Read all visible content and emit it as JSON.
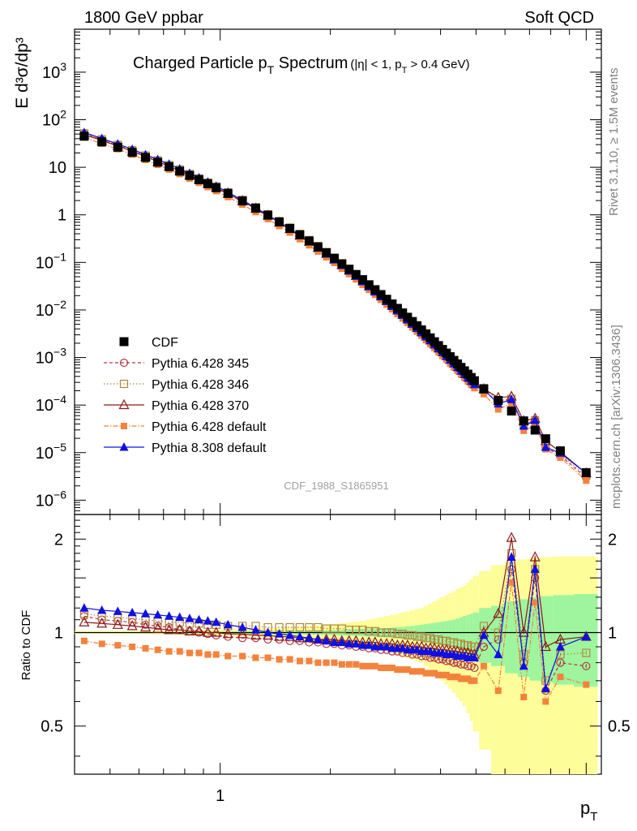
{
  "header": {
    "left": "1800 GeV ppbar",
    "right": "Soft QCD",
    "watermark": "CDF_1988_S1865951",
    "side_top": "Rivet 3.1.10, ≥ 1.5M events",
    "side_bottom": "mcplots.cern.ch [arXiv:1306.3436]"
  },
  "chart_data": [
    {
      "type": "line",
      "title": "Charged Particle p",
      "title_sub": "T",
      "title_word": " Spectrum",
      "title_cut_a": "(|η| < 1, p",
      "title_cut_sub": "T",
      "title_cut_b": " > 0.4 GeV)",
      "ylabel": "E d³σ/dp³",
      "xlabel": "p",
      "xlabel_sub": "T",
      "xscale": "log",
      "yscale": "log",
      "xlim": [
        0.4,
        11
      ],
      "ylim": [
        5e-07,
        8000
      ],
      "x_tick_labels": [
        {
          "v": 1,
          "label": "1"
        }
      ],
      "y_tick_labels": [
        {
          "v": 1000,
          "base": "10",
          "exp": "3"
        },
        {
          "v": 100,
          "base": "10",
          "exp": "2"
        },
        {
          "v": 10,
          "base": "10",
          "exp": ""
        },
        {
          "v": 1,
          "base": "1",
          "exp": ""
        },
        {
          "v": 0.1,
          "base": "10",
          "exp": "−1"
        },
        {
          "v": 0.01,
          "base": "10",
          "exp": "−2"
        },
        {
          "v": 0.001,
          "base": "10",
          "exp": "−3"
        },
        {
          "v": 0.0001,
          "base": "10",
          "exp": "−4"
        },
        {
          "v": 1e-05,
          "base": "10",
          "exp": "−5"
        },
        {
          "v": 1e-06,
          "base": "10",
          "exp": "−6"
        }
      ],
      "legend_position": "bottom-left",
      "x": [
        0.425,
        0.475,
        0.525,
        0.575,
        0.625,
        0.675,
        0.725,
        0.775,
        0.825,
        0.875,
        0.925,
        0.975,
        1.05,
        1.15,
        1.25,
        1.35,
        1.45,
        1.55,
        1.65,
        1.75,
        1.85,
        1.95,
        2.05,
        2.15,
        2.25,
        2.35,
        2.45,
        2.55,
        2.65,
        2.75,
        2.85,
        2.95,
        3.05,
        3.15,
        3.25,
        3.35,
        3.45,
        3.55,
        3.65,
        3.75,
        3.85,
        3.95,
        4.05,
        4.15,
        4.25,
        4.35,
        4.45,
        4.55,
        4.65,
        4.75,
        4.85,
        4.95,
        5.25,
        5.75,
        6.25,
        6.75,
        7.25,
        7.75,
        8.5,
        10.0
      ],
      "series": [
        {
          "name": "CDF",
          "color": "#000000",
          "marker": "square-filled",
          "values": [
            45.0,
            34.2,
            26.4,
            20.6,
            16.1,
            12.8,
            10.3,
            8.3,
            6.73,
            5.49,
            4.51,
            3.72,
            2.82,
            1.96,
            1.38,
            0.985,
            0.71,
            0.518,
            0.381,
            0.283,
            0.212,
            0.16,
            0.122,
            0.0932,
            0.0718,
            0.0556,
            0.0433,
            0.0339,
            0.0267,
            0.0211,
            0.0168,
            0.0134,
            0.0108,
            0.00868,
            0.00703,
            0.00572,
            0.00467,
            0.00382,
            0.00314,
            0.00259,
            0.00215,
            0.00178,
            0.00148,
            0.00124,
            0.00104,
            0.00087,
            0.000734,
            0.00062,
            0.000525,
            0.000446,
            0.00038,
            0.000325,
            0.000218,
            0.000125,
            7.5e-05,
            4.65e-05,
            2.98e-05,
            1.96e-05,
            1.09e-05,
            3.8e-06
          ]
        },
        {
          "name": "Pythia 6.428 345",
          "color": "#b5383f",
          "marker": "circle-open",
          "dash": "4,3",
          "ratio": [
            1.13,
            1.1,
            1.09,
            1.08,
            1.06,
            1.05,
            1.04,
            1.02,
            1.01,
            1.0,
            0.99,
            0.98,
            0.97,
            0.96,
            0.96,
            0.95,
            0.95,
            0.94,
            0.94,
            0.93,
            0.93,
            0.92,
            0.92,
            0.91,
            0.91,
            0.9,
            0.9,
            0.89,
            0.89,
            0.88,
            0.88,
            0.87,
            0.87,
            0.86,
            0.86,
            0.85,
            0.85,
            0.84,
            0.84,
            0.83,
            0.83,
            0.82,
            0.82,
            0.81,
            0.81,
            0.8,
            0.8,
            0.79,
            0.79,
            0.78,
            0.78,
            0.77,
            0.9,
            0.95,
            1.6,
            0.8,
            1.5,
            0.65,
            0.8,
            0.78
          ]
        },
        {
          "name": "Pythia 6.428 346",
          "color": "#b08940",
          "marker": "square-open",
          "dash": "1.5,2.5",
          "ratio": [
            1.15,
            1.13,
            1.12,
            1.11,
            1.1,
            1.09,
            1.08,
            1.08,
            1.07,
            1.07,
            1.06,
            1.06,
            1.05,
            1.05,
            1.05,
            1.04,
            1.04,
            1.04,
            1.04,
            1.04,
            1.04,
            1.03,
            1.03,
            1.03,
            1.02,
            1.02,
            1.02,
            1.01,
            1.01,
            1.0,
            1.0,
            1.0,
            0.99,
            0.99,
            0.98,
            0.98,
            0.97,
            0.97,
            0.96,
            0.96,
            0.95,
            0.95,
            0.94,
            0.94,
            0.93,
            0.93,
            0.92,
            0.92,
            0.91,
            0.91,
            0.9,
            0.9,
            1.05,
            1.0,
            1.8,
            0.85,
            1.6,
            0.7,
            0.85,
            0.86
          ]
        },
        {
          "name": "Pythia 6.428 370",
          "color": "#8b1a1a",
          "marker": "triangle-open",
          "dash": "",
          "ratio": [
            1.08,
            1.07,
            1.06,
            1.05,
            1.04,
            1.03,
            1.02,
            1.02,
            1.01,
            1.01,
            1.0,
            1.0,
            0.99,
            0.99,
            0.98,
            0.98,
            0.97,
            0.97,
            0.96,
            0.96,
            0.95,
            0.95,
            0.95,
            0.94,
            0.94,
            0.94,
            0.93,
            0.93,
            0.93,
            0.92,
            0.92,
            0.92,
            0.91,
            0.91,
            0.91,
            0.9,
            0.9,
            0.9,
            0.89,
            0.89,
            0.89,
            0.88,
            0.88,
            0.88,
            0.87,
            0.87,
            0.87,
            0.86,
            0.86,
            0.86,
            0.85,
            0.85,
            1.0,
            1.15,
            2.02,
            1.0,
            1.75,
            0.9,
            0.95,
            0.97
          ]
        },
        {
          "name": "Pythia 6.428 default",
          "color": "#f4823c",
          "marker": "square-filled-small",
          "dash": "6,2,1.5,2",
          "ratio": [
            0.94,
            0.92,
            0.91,
            0.9,
            0.89,
            0.88,
            0.87,
            0.87,
            0.86,
            0.86,
            0.85,
            0.85,
            0.84,
            0.84,
            0.83,
            0.83,
            0.82,
            0.82,
            0.81,
            0.81,
            0.8,
            0.8,
            0.8,
            0.79,
            0.79,
            0.79,
            0.78,
            0.78,
            0.78,
            0.77,
            0.77,
            0.77,
            0.76,
            0.76,
            0.76,
            0.75,
            0.75,
            0.75,
            0.74,
            0.74,
            0.74,
            0.73,
            0.73,
            0.73,
            0.72,
            0.72,
            0.72,
            0.71,
            0.71,
            0.71,
            0.7,
            0.7,
            0.78,
            0.65,
            1.45,
            0.62,
            1.25,
            0.6,
            0.72,
            0.68
          ]
        },
        {
          "name": "Pythia 8.308 default",
          "color": "#1010e0",
          "marker": "triangle-filled",
          "dash": "",
          "ratio": [
            1.2,
            1.18,
            1.17,
            1.16,
            1.15,
            1.14,
            1.13,
            1.12,
            1.11,
            1.1,
            1.09,
            1.08,
            1.06,
            1.04,
            1.02,
            1.0,
            0.99,
            0.98,
            0.97,
            0.96,
            0.95,
            0.94,
            0.93,
            0.93,
            0.92,
            0.92,
            0.91,
            0.91,
            0.9,
            0.9,
            0.9,
            0.89,
            0.89,
            0.89,
            0.88,
            0.88,
            0.88,
            0.87,
            0.87,
            0.87,
            0.86,
            0.86,
            0.86,
            0.85,
            0.85,
            0.85,
            0.84,
            0.84,
            0.84,
            0.83,
            0.83,
            0.83,
            0.98,
            0.85,
            1.75,
            0.78,
            1.6,
            0.66,
            0.9,
            0.97
          ]
        }
      ]
    },
    {
      "type": "line",
      "ylabel": "Ratio to CDF",
      "xscale": "log",
      "xlim": [
        0.4,
        11
      ],
      "ylim": [
        0.35,
        2.4
      ],
      "y_tick_labels": [
        {
          "v": 2,
          "label": "2"
        },
        {
          "v": 1,
          "label": "1"
        },
        {
          "v": 0.5,
          "label": "0.5"
        }
      ],
      "band_colors": {
        "inner": "#9ef59e",
        "outer": "#fdfd9a",
        "reference": "#000000"
      },
      "band_inner": [
        0.003,
        0.003,
        0.003,
        0.003,
        0.004,
        0.004,
        0.004,
        0.005,
        0.005,
        0.005,
        0.006,
        0.006,
        0.007,
        0.008,
        0.009,
        0.01,
        0.011,
        0.012,
        0.013,
        0.014,
        0.015,
        0.017,
        0.019,
        0.021,
        0.023,
        0.025,
        0.027,
        0.029,
        0.031,
        0.033,
        0.035,
        0.037,
        0.04,
        0.043,
        0.046,
        0.05,
        0.055,
        0.06,
        0.065,
        0.07,
        0.075,
        0.08,
        0.085,
        0.09,
        0.095,
        0.1,
        0.11,
        0.12,
        0.13,
        0.14,
        0.15,
        0.16,
        0.2,
        0.22,
        0.26,
        0.28,
        0.3,
        0.31,
        0.32,
        0.33
      ],
      "band_outer": [
        0.01,
        0.01,
        0.01,
        0.011,
        0.012,
        0.013,
        0.014,
        0.015,
        0.016,
        0.018,
        0.02,
        0.022,
        0.024,
        0.027,
        0.03,
        0.033,
        0.036,
        0.04,
        0.045,
        0.05,
        0.055,
        0.06,
        0.066,
        0.072,
        0.078,
        0.085,
        0.092,
        0.1,
        0.11,
        0.12,
        0.13,
        0.14,
        0.15,
        0.16,
        0.17,
        0.18,
        0.19,
        0.2,
        0.22,
        0.24,
        0.26,
        0.28,
        0.3,
        0.32,
        0.34,
        0.36,
        0.38,
        0.4,
        0.42,
        0.45,
        0.48,
        0.52,
        0.58,
        0.65,
        0.7,
        0.72,
        0.74,
        0.75,
        0.76,
        0.76
      ]
    }
  ]
}
